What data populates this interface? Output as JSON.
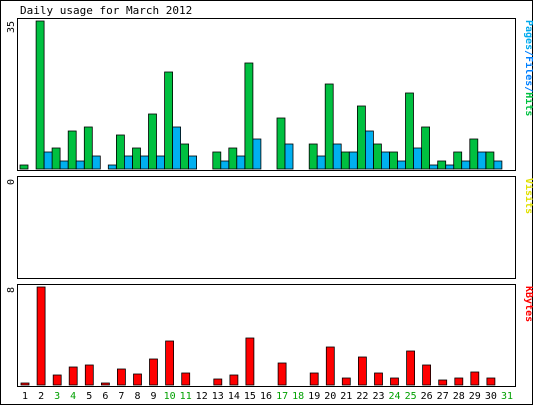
{
  "title": "Daily usage for March 2012",
  "chart_data": [
    {
      "type": "bar",
      "name": "hits-files-pages",
      "ylim": [
        0,
        35
      ],
      "ymax_label": "35",
      "legend_parts": [
        {
          "text": "Pages",
          "color": "#00aaee"
        },
        {
          "text": "/",
          "color": "#0080ff"
        },
        {
          "text": "Files",
          "color": "#0080ff"
        },
        {
          "text": "/",
          "color": "#0080ff"
        },
        {
          "text": "Hits",
          "color": "#00c040"
        }
      ],
      "series": [
        {
          "name": "Hits",
          "color": "#00c040",
          "values": [
            1,
            35,
            5,
            9,
            10,
            0,
            8,
            5,
            13,
            23,
            6,
            0,
            4,
            5,
            25,
            0,
            12,
            0,
            6,
            20,
            4,
            15,
            6,
            4,
            18,
            10,
            2,
            4,
            7,
            4,
            0
          ]
        },
        {
          "name": "Pages",
          "color": "#00b0f0",
          "values": [
            0,
            4,
            2,
            2,
            3,
            1,
            3,
            3,
            3,
            10,
            3,
            0,
            2,
            3,
            7,
            0,
            6,
            0,
            3,
            6,
            4,
            9,
            4,
            2,
            5,
            1,
            1,
            2,
            4,
            2,
            0
          ]
        }
      ]
    },
    {
      "type": "bar",
      "name": "visits",
      "ylim": [
        0,
        1
      ],
      "ymax_label": "0",
      "legend_parts": [
        {
          "text": "Visits",
          "color": "#e0e000"
        }
      ],
      "series": [
        {
          "name": "Visits",
          "color": "#e0e000",
          "values": [
            0,
            0,
            0,
            0,
            0,
            0,
            0,
            0,
            0,
            0,
            0,
            0,
            0,
            0,
            0,
            0,
            0,
            0,
            0,
            0,
            0,
            0,
            0,
            0,
            0,
            0,
            0,
            0,
            0,
            0,
            0
          ]
        }
      ]
    },
    {
      "type": "bar",
      "name": "kbytes",
      "ylim": [
        0,
        8
      ],
      "ymax_label": "8",
      "legend_parts": [
        {
          "text": "KBytes",
          "color": "#ff0000"
        }
      ],
      "series": [
        {
          "name": "KBytes",
          "color": "#ff0000",
          "values": [
            0.2,
            8,
            0.8,
            1.5,
            1.6,
            0.2,
            1.3,
            0.9,
            2.1,
            3.6,
            1,
            0,
            0.5,
            0.8,
            3.8,
            0,
            1.8,
            0,
            1,
            3.1,
            0.6,
            2.3,
            1,
            0.6,
            2.8,
            1.6,
            0.4,
            0.6,
            1.1,
            0.6,
            0
          ]
        }
      ]
    }
  ],
  "days": [
    "1",
    "2",
    "3",
    "4",
    "5",
    "6",
    "7",
    "8",
    "9",
    "10",
    "11",
    "12",
    "13",
    "14",
    "15",
    "16",
    "17",
    "18",
    "19",
    "20",
    "21",
    "22",
    "23",
    "24",
    "25",
    "26",
    "27",
    "28",
    "29",
    "30",
    "31"
  ],
  "weekend_days": [
    "3",
    "4",
    "10",
    "11",
    "17",
    "18",
    "24",
    "25",
    "31"
  ],
  "colors": {
    "weekday": "#000000",
    "weekend": "#00a000",
    "panel_border": "#000000",
    "bar_outline": "#000000",
    "frame_border": "#000000"
  }
}
